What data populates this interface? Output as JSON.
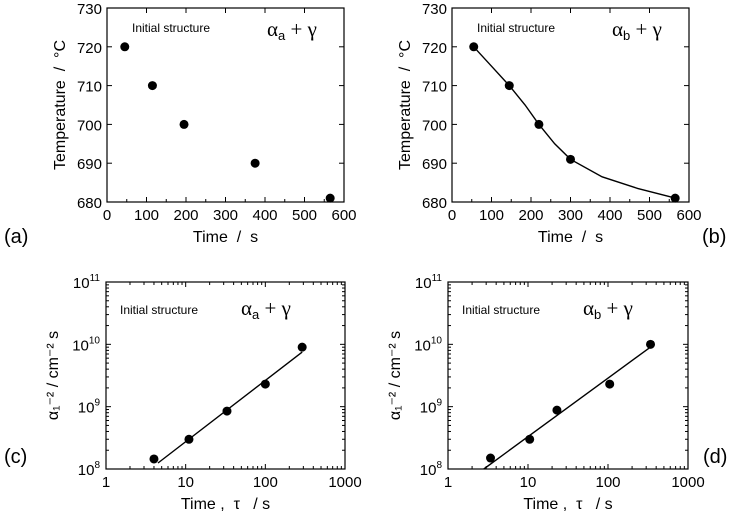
{
  "chart_data": [
    {
      "id": "a",
      "type": "scatter",
      "panel_label": "(a)",
      "annotation": "Initial structure",
      "formula": {
        "base": "α",
        "sub": "a",
        "rest": " + γ"
      },
      "xlabel": "Time  /  s",
      "ylabel": "Temperature  /  °C",
      "xscale": "linear",
      "yscale": "linear",
      "xlim": [
        0,
        600
      ],
      "ylim": [
        680,
        730
      ],
      "xticks": [
        0,
        100,
        200,
        300,
        400,
        500,
        600
      ],
      "yticks": [
        680,
        690,
        700,
        710,
        720,
        730
      ],
      "points": [
        [
          45,
          720
        ],
        [
          115,
          710
        ],
        [
          195,
          700
        ],
        [
          375,
          690
        ],
        [
          565,
          681
        ]
      ],
      "line": null
    },
    {
      "id": "b",
      "type": "scatter",
      "panel_label": "(b)",
      "annotation": "Initial structure",
      "formula": {
        "base": "α",
        "sub": "b",
        "rest": " + γ"
      },
      "xlabel": "Time  /  s",
      "ylabel": "Temperature  /  °C",
      "xscale": "linear",
      "yscale": "linear",
      "xlim": [
        0,
        600
      ],
      "ylim": [
        680,
        730
      ],
      "xticks": [
        0,
        100,
        200,
        300,
        400,
        500,
        600
      ],
      "yticks": [
        680,
        690,
        700,
        710,
        720,
        730
      ],
      "points": [
        [
          55,
          720
        ],
        [
          145,
          710
        ],
        [
          220,
          700
        ],
        [
          300,
          691
        ],
        [
          565,
          681
        ]
      ],
      "line": [
        [
          55,
          720
        ],
        [
          100,
          715
        ],
        [
          145,
          710
        ],
        [
          185,
          705
        ],
        [
          220,
          700
        ],
        [
          260,
          695
        ],
        [
          300,
          691
        ],
        [
          380,
          686.5
        ],
        [
          470,
          683.5
        ],
        [
          565,
          681
        ]
      ]
    },
    {
      "id": "c",
      "type": "scatter",
      "panel_label": "(c)",
      "annotation": "Initial structure",
      "formula": {
        "base": "α",
        "sub": "a",
        "rest": " + γ"
      },
      "xlabel": "Time ,  τ   / s",
      "ylabel": "α₁⁻² / cm⁻² s",
      "xscale": "log",
      "yscale": "log",
      "xlim": [
        1,
        1000
      ],
      "ylim": [
        100000000.0,
        100000000000.0
      ],
      "xticks": [
        1,
        10,
        100,
        1000
      ],
      "xticklabels": [
        "1",
        "10",
        "100",
        "1000"
      ],
      "yticks": [
        100000000.0,
        1000000000.0,
        10000000000.0,
        100000000000.0
      ],
      "yticklabels": [
        {
          "base": "10",
          "exp": "8"
        },
        {
          "base": "10",
          "exp": "9"
        },
        {
          "base": "10",
          "exp": "10"
        },
        {
          "base": "10",
          "exp": "11"
        }
      ],
      "points": [
        [
          4,
          145000000.0
        ],
        [
          11,
          300000000.0
        ],
        [
          33,
          850000000.0
        ],
        [
          100,
          2300000000.0
        ],
        [
          290,
          9000000000.0
        ]
      ],
      "line": [
        [
          4.5,
          125000000.0
        ],
        [
          290,
          7500000000.0
        ]
      ]
    },
    {
      "id": "d",
      "type": "scatter",
      "panel_label": "(d)",
      "annotation": "Initial structure",
      "formula": {
        "base": "α",
        "sub": "b",
        "rest": " + γ"
      },
      "xlabel": "Time ,  τ   / s",
      "ylabel": "α₁⁻² / cm⁻² s",
      "xscale": "log",
      "yscale": "log",
      "xlim": [
        1,
        1000
      ],
      "ylim": [
        100000000.0,
        100000000000.0
      ],
      "xticks": [
        1,
        10,
        100,
        1000
      ],
      "xticklabels": [
        "1",
        "10",
        "100",
        "1000"
      ],
      "yticks": [
        100000000.0,
        1000000000.0,
        10000000000.0,
        100000000000.0
      ],
      "yticklabels": [
        {
          "base": "10",
          "exp": "8"
        },
        {
          "base": "10",
          "exp": "9"
        },
        {
          "base": "10",
          "exp": "10"
        },
        {
          "base": "10",
          "exp": "11"
        }
      ],
      "points": [
        [
          3.4,
          150000000.0
        ],
        [
          10.5,
          300000000.0
        ],
        [
          23,
          880000000.0
        ],
        [
          105,
          2300000000.0
        ],
        [
          340,
          10000000000.0
        ]
      ],
      "line": [
        [
          2.8,
          100000000.0
        ],
        [
          330,
          8800000000.0
        ]
      ]
    }
  ]
}
